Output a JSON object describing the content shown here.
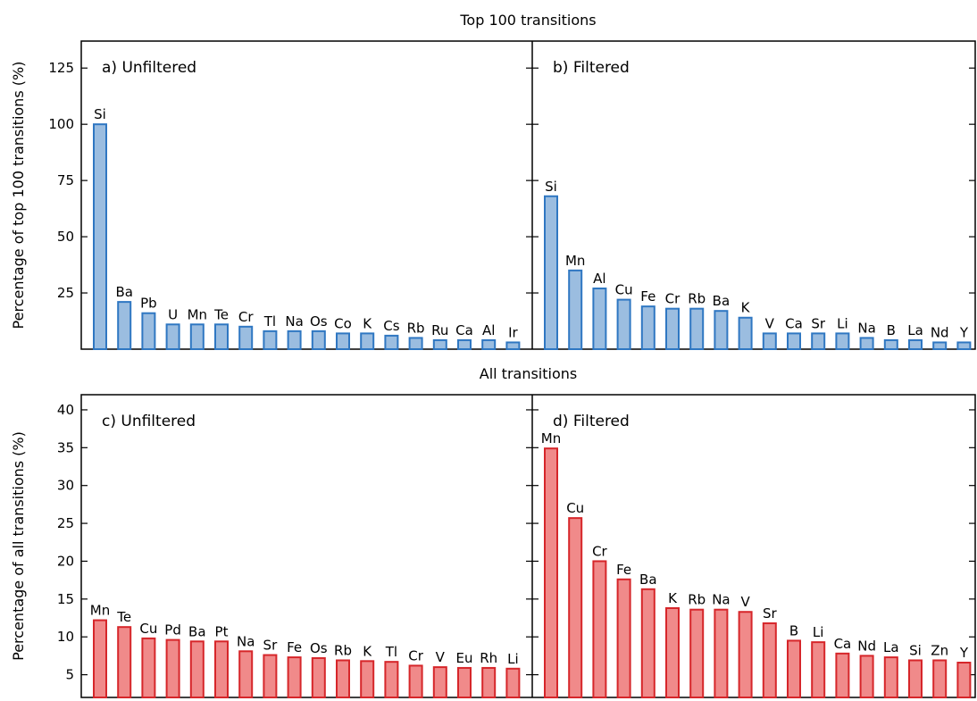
{
  "chart_data": [
    {
      "type": "bar",
      "row_title": "Top 100 transitions",
      "ylabel": "Percentage of top 100 transitions (%)",
      "ylim": [
        0,
        137
      ],
      "yticks": [
        25,
        50,
        75,
        100,
        125
      ],
      "panels": [
        {
          "label": "a) Unfiltered",
          "color": "#9bbde0",
          "edge": "#2f77c2",
          "categories": [
            "Si",
            "Ba",
            "Pb",
            "U",
            "Mn",
            "Te",
            "Cr",
            "Tl",
            "Na",
            "Os",
            "Co",
            "K",
            "Cs",
            "Rb",
            "Ru",
            "Ca",
            "Al",
            "Ir"
          ],
          "values": [
            100,
            21,
            16,
            11,
            11,
            11,
            10,
            8,
            8,
            8,
            7,
            7,
            6,
            5,
            4,
            4,
            4,
            3
          ]
        },
        {
          "label": "b) Filtered",
          "color": "#9bbde0",
          "edge": "#2f77c2",
          "categories": [
            "Si",
            "Mn",
            "Al",
            "Cu",
            "Fe",
            "Cr",
            "Rb",
            "Ba",
            "K",
            "V",
            "Ca",
            "Sr",
            "Li",
            "Na",
            "B",
            "La",
            "Nd",
            "Y"
          ],
          "values": [
            68,
            35,
            27,
            22,
            19,
            18,
            18,
            17,
            14,
            7,
            7,
            7,
            7,
            5,
            4,
            4,
            3,
            3
          ]
        }
      ]
    },
    {
      "type": "bar",
      "row_title": "All transitions",
      "ylabel": "Percentage of all transitions (%)",
      "ylim": [
        2,
        42
      ],
      "yticks": [
        5,
        10,
        15,
        20,
        25,
        30,
        35,
        40
      ],
      "panels": [
        {
          "label": "c) Unfiltered",
          "color": "#f08a8a",
          "edge": "#d6262a",
          "categories": [
            "Mn",
            "Te",
            "Cu",
            "Pd",
            "Ba",
            "Pt",
            "Na",
            "Sr",
            "Fe",
            "Os",
            "Rb",
            "K",
            "Tl",
            "Cr",
            "V",
            "Eu",
            "Rh",
            "Li"
          ],
          "values": [
            12.2,
            11.3,
            9.8,
            9.6,
            9.4,
            9.4,
            8.1,
            7.6,
            7.3,
            7.2,
            6.9,
            6.8,
            6.7,
            6.2,
            6.0,
            5.9,
            5.9,
            5.8
          ]
        },
        {
          "label": "d) Filtered",
          "color": "#f08a8a",
          "edge": "#d6262a",
          "categories": [
            "Mn",
            "Cu",
            "Cr",
            "Fe",
            "Ba",
            "K",
            "Rb",
            "Na",
            "V",
            "Sr",
            "B",
            "Li",
            "Ca",
            "Nd",
            "La",
            "Si",
            "Zn",
            "Y"
          ],
          "values": [
            34.9,
            25.7,
            20.0,
            17.6,
            16.3,
            13.8,
            13.6,
            13.6,
            13.3,
            11.8,
            9.5,
            9.3,
            7.8,
            7.5,
            7.3,
            6.9,
            6.9,
            6.6
          ]
        }
      ]
    }
  ]
}
